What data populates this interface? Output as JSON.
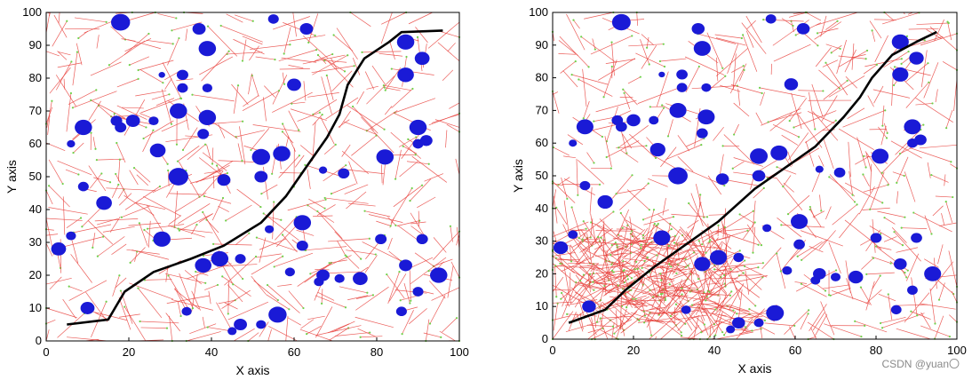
{
  "watermark": "CSDN @yuan〇",
  "colors": {
    "tree": "#e8413c",
    "node": "#6fd14a",
    "obstacle": "#1a1ad6",
    "path": "#000000"
  },
  "chart_data": [
    {
      "type": "scatter",
      "title": "",
      "xlabel": "X axis",
      "ylabel": "Y axis",
      "xlim": [
        0,
        100
      ],
      "ylim": [
        0,
        100
      ],
      "xticks": [
        0,
        20,
        40,
        60,
        80,
        100
      ],
      "yticks": [
        0,
        10,
        20,
        30,
        40,
        50,
        60,
        70,
        80,
        90,
        100
      ],
      "grid": false,
      "legend": "none",
      "tree_seed": 7,
      "tree_edges": 520,
      "path": [
        [
          5,
          5
        ],
        [
          15,
          6.5
        ],
        [
          19,
          15
        ],
        [
          26,
          21
        ],
        [
          35,
          25
        ],
        [
          43,
          29
        ],
        [
          52,
          36
        ],
        [
          58,
          44
        ],
        [
          63,
          53
        ],
        [
          68,
          62
        ],
        [
          71,
          69
        ],
        [
          73,
          78
        ],
        [
          77,
          86
        ],
        [
          83,
          91
        ],
        [
          86,
          94
        ],
        [
          96,
          94.5
        ]
      ],
      "obstacles": [
        [
          18,
          97,
          2.3
        ],
        [
          55,
          98,
          1.3
        ],
        [
          37,
          95,
          1.6
        ],
        [
          63,
          95,
          1.6
        ],
        [
          87,
          91,
          2.1
        ],
        [
          91,
          86,
          1.8
        ],
        [
          39,
          89,
          2.1
        ],
        [
          87,
          81,
          2.0
        ],
        [
          33,
          81,
          1.4
        ],
        [
          28,
          81,
          0.8
        ],
        [
          33,
          77,
          1.3
        ],
        [
          39,
          77,
          1.2
        ],
        [
          60,
          78,
          1.7
        ],
        [
          32,
          70,
          2.1
        ],
        [
          39,
          68,
          2.1
        ],
        [
          26,
          67,
          1.2
        ],
        [
          18,
          65,
          1.4
        ],
        [
          17,
          67,
          1.4
        ],
        [
          21,
          67,
          1.7
        ],
        [
          9,
          65,
          2.1
        ],
        [
          38,
          63,
          1.4
        ],
        [
          90,
          65,
          2.1
        ],
        [
          92,
          61,
          1.5
        ],
        [
          90,
          60,
          1.3
        ],
        [
          27,
          58,
          1.9
        ],
        [
          57,
          57,
          2.1
        ],
        [
          52,
          56,
          2.2
        ],
        [
          82,
          56,
          2.1
        ],
        [
          6,
          60,
          1.0
        ],
        [
          32,
          50,
          2.4
        ],
        [
          43,
          49,
          1.6
        ],
        [
          52,
          50,
          1.6
        ],
        [
          67,
          52,
          1.0
        ],
        [
          72,
          51,
          1.4
        ],
        [
          14,
          42,
          1.9
        ],
        [
          9,
          47,
          1.3
        ],
        [
          62,
          36,
          2.1
        ],
        [
          54,
          34,
          1.1
        ],
        [
          28,
          31,
          2.1
        ],
        [
          81,
          31,
          1.4
        ],
        [
          91,
          31,
          1.4
        ],
        [
          62,
          29,
          1.4
        ],
        [
          38,
          23,
          2.0
        ],
        [
          42,
          25,
          2.1
        ],
        [
          3,
          28,
          1.8
        ],
        [
          6,
          32,
          1.2
        ],
        [
          47,
          25,
          1.3
        ],
        [
          87,
          23,
          1.6
        ],
        [
          67,
          20,
          1.6
        ],
        [
          76,
          19,
          1.8
        ],
        [
          59,
          21,
          1.2
        ],
        [
          66,
          18,
          1.2
        ],
        [
          95,
          20,
          2.1
        ],
        [
          71,
          19,
          1.2
        ],
        [
          10,
          10,
          1.7
        ],
        [
          56,
          8,
          2.2
        ],
        [
          86,
          9,
          1.3
        ],
        [
          90,
          15,
          1.3
        ],
        [
          34,
          9,
          1.2
        ],
        [
          47,
          5,
          1.6
        ],
        [
          52,
          5,
          1.2
        ],
        [
          45,
          3,
          1.1
        ]
      ]
    },
    {
      "type": "scatter",
      "title": "",
      "xlabel": "X axis",
      "ylabel": "Y axis",
      "xlim": [
        0,
        100
      ],
      "ylim": [
        0,
        100
      ],
      "xticks": [
        0,
        20,
        40,
        60,
        80,
        100
      ],
      "yticks": [
        0,
        10,
        20,
        30,
        40,
        50,
        60,
        70,
        80,
        90,
        100
      ],
      "grid": false,
      "legend": "none",
      "tree_seed": 23,
      "tree_edges": 900,
      "path": [
        [
          4,
          5
        ],
        [
          13,
          9
        ],
        [
          18,
          15
        ],
        [
          25,
          22
        ],
        [
          33,
          29
        ],
        [
          41,
          36
        ],
        [
          50,
          46
        ],
        [
          57,
          52
        ],
        [
          65,
          59
        ],
        [
          72,
          68
        ],
        [
          76,
          74
        ],
        [
          79,
          80
        ],
        [
          84,
          87
        ],
        [
          90,
          91
        ],
        [
          95,
          94
        ]
      ],
      "obstacles": [
        [
          17,
          97,
          2.3
        ],
        [
          54,
          98,
          1.3
        ],
        [
          36,
          95,
          1.6
        ],
        [
          62,
          95,
          1.6
        ],
        [
          86,
          91,
          2.1
        ],
        [
          90,
          86,
          1.8
        ],
        [
          37,
          89,
          2.1
        ],
        [
          86,
          81,
          2.0
        ],
        [
          32,
          81,
          1.4
        ],
        [
          27,
          81,
          0.8
        ],
        [
          32,
          77,
          1.3
        ],
        [
          38,
          77,
          1.2
        ],
        [
          59,
          78,
          1.7
        ],
        [
          31,
          70,
          2.1
        ],
        [
          38,
          68,
          2.1
        ],
        [
          25,
          67,
          1.2
        ],
        [
          17,
          65,
          1.4
        ],
        [
          16,
          67,
          1.4
        ],
        [
          20,
          67,
          1.7
        ],
        [
          8,
          65,
          2.1
        ],
        [
          37,
          63,
          1.4
        ],
        [
          89,
          65,
          2.1
        ],
        [
          91,
          61,
          1.5
        ],
        [
          89,
          60,
          1.3
        ],
        [
          26,
          58,
          1.9
        ],
        [
          56,
          57,
          2.1
        ],
        [
          51,
          56,
          2.2
        ],
        [
          81,
          56,
          2.1
        ],
        [
          5,
          60,
          1.0
        ],
        [
          31,
          50,
          2.4
        ],
        [
          42,
          49,
          1.6
        ],
        [
          51,
          50,
          1.6
        ],
        [
          66,
          52,
          1.0
        ],
        [
          71,
          51,
          1.4
        ],
        [
          13,
          42,
          1.9
        ],
        [
          8,
          47,
          1.3
        ],
        [
          61,
          36,
          2.1
        ],
        [
          53,
          34,
          1.1
        ],
        [
          27,
          31,
          2.1
        ],
        [
          80,
          31,
          1.4
        ],
        [
          90,
          31,
          1.4
        ],
        [
          61,
          29,
          1.4
        ],
        [
          37,
          23,
          2.0
        ],
        [
          41,
          25,
          2.1
        ],
        [
          2,
          28,
          1.8
        ],
        [
          5,
          32,
          1.2
        ],
        [
          46,
          25,
          1.3
        ],
        [
          86,
          23,
          1.6
        ],
        [
          66,
          20,
          1.6
        ],
        [
          75,
          19,
          1.8
        ],
        [
          58,
          21,
          1.2
        ],
        [
          65,
          18,
          1.2
        ],
        [
          94,
          20,
          2.1
        ],
        [
          70,
          19,
          1.2
        ],
        [
          9,
          10,
          1.7
        ],
        [
          55,
          8,
          2.2
        ],
        [
          85,
          9,
          1.3
        ],
        [
          89,
          15,
          1.3
        ],
        [
          33,
          9,
          1.2
        ],
        [
          46,
          5,
          1.6
        ],
        [
          51,
          5,
          1.2
        ],
        [
          44,
          3,
          1.1
        ]
      ]
    }
  ]
}
